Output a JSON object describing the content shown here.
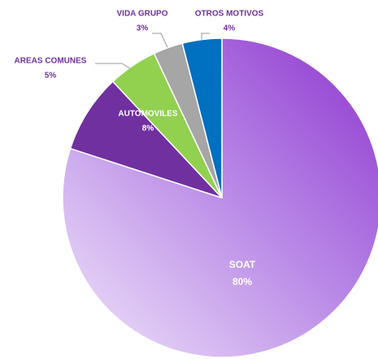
{
  "chart_data": {
    "type": "pie",
    "categories": [
      "SOAT",
      "AUTOMOVILES",
      "AREAS COMUNES",
      "VIDA GRUPO",
      "OTROS MOTIVOS"
    ],
    "values": [
      80,
      8,
      5,
      3,
      4
    ],
    "value_labels": [
      "80%",
      "8%",
      "5%",
      "3%",
      "4%"
    ],
    "colors": [
      "#9b4fd6",
      "#7030a0",
      "#92d050",
      "#a6a6a6",
      "#0070c0"
    ]
  }
}
